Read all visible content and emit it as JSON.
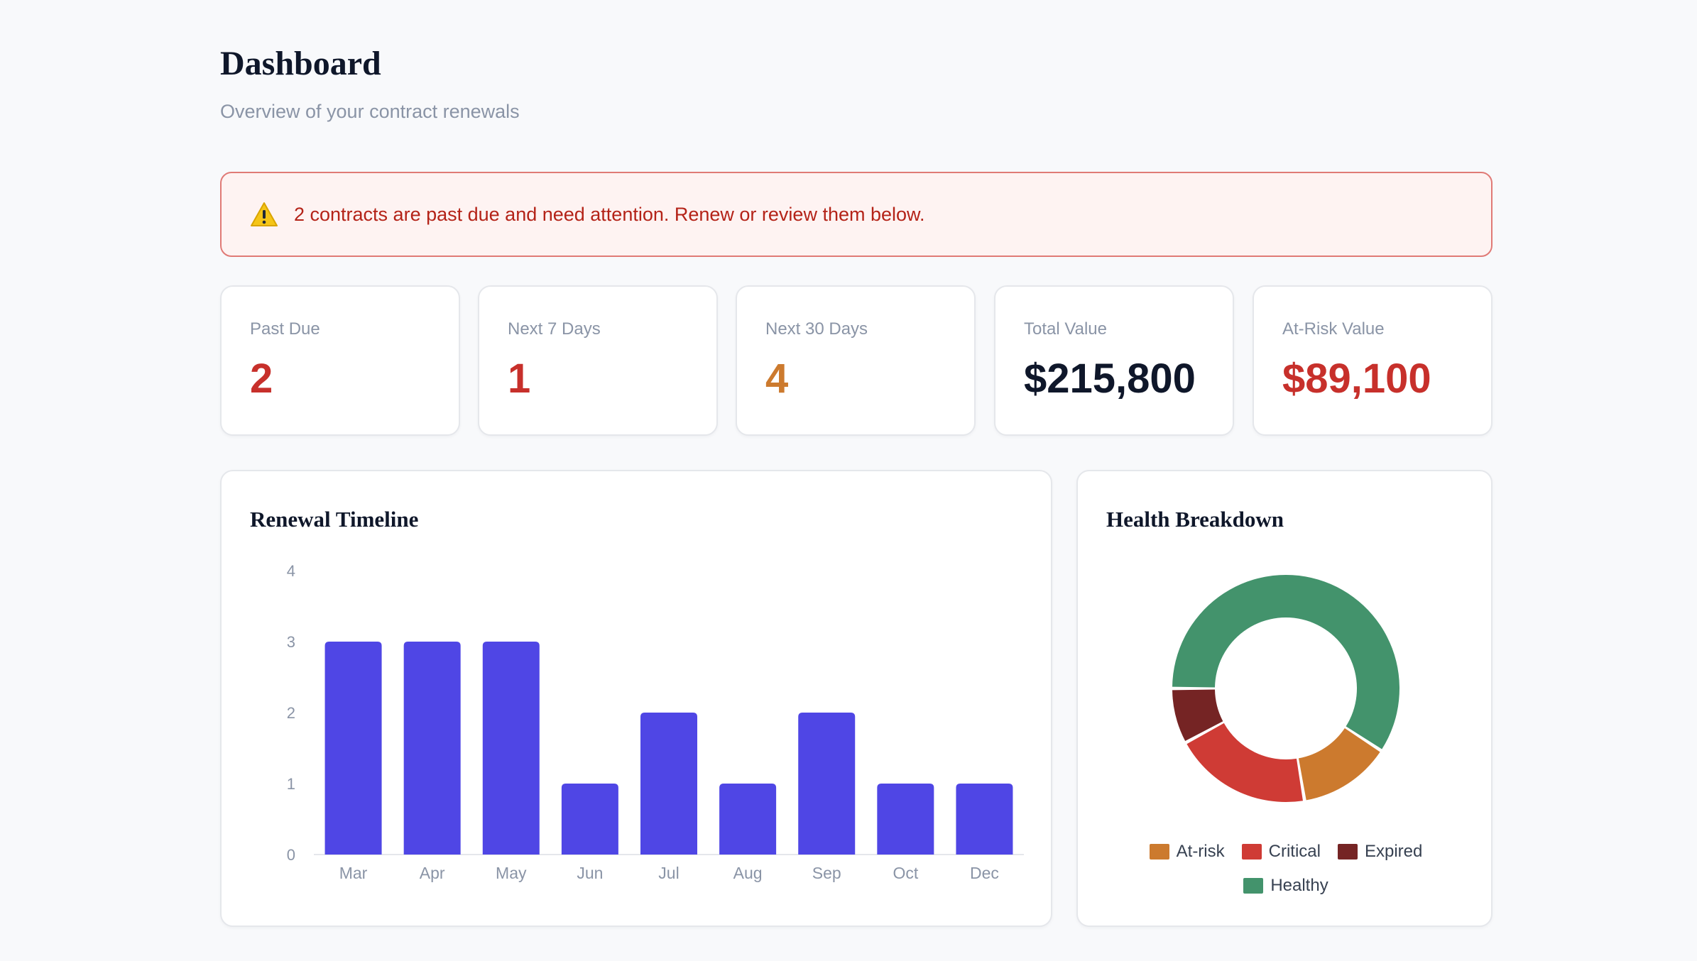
{
  "header": {
    "title": "Dashboard",
    "subtitle": "Overview of your contract renewals"
  },
  "alert": {
    "icon": "warning-icon",
    "message": "2 contracts are past due and need attention. Renew or review them below."
  },
  "stats": [
    {
      "label": "Past Due",
      "value": "2",
      "color": "#c7302b"
    },
    {
      "label": "Next 7 Days",
      "value": "1",
      "color": "#c7302b"
    },
    {
      "label": "Next 30 Days",
      "value": "4",
      "color": "#cc7a2e"
    },
    {
      "label": "Total Value",
      "value": "$215,800",
      "color": "#0f172a"
    },
    {
      "label": "At-Risk Value",
      "value": "$89,100",
      "color": "#c7302b"
    }
  ],
  "timeline": {
    "title": "Renewal Timeline",
    "chart_data": {
      "type": "bar",
      "categories": [
        "Mar",
        "Apr",
        "May",
        "Jun",
        "Jul",
        "Aug",
        "Sep",
        "Oct",
        "Dec"
      ],
      "values": [
        3,
        3,
        3,
        1,
        2,
        1,
        2,
        1,
        1
      ],
      "yticks": [
        "0",
        "1",
        "2",
        "3",
        "4"
      ],
      "ylim": [
        0,
        4
      ],
      "color": "#4f46e5",
      "grid": false
    }
  },
  "health": {
    "title": "Health Breakdown",
    "chart_data": {
      "type": "pie",
      "style": "donut",
      "slices": [
        {
          "label": "Healthy",
          "value": 9,
          "color": "#43936c"
        },
        {
          "label": "At-risk",
          "value": 2,
          "color": "#cc7a2e"
        },
        {
          "label": "Critical",
          "value": 3,
          "color": "#cf3b35"
        },
        {
          "label": "Expired",
          "value": 1.2,
          "color": "#752424"
        }
      ],
      "legend_order": [
        "At-risk",
        "Critical",
        "Expired",
        "Healthy"
      ],
      "legend_position": "bottom"
    }
  }
}
